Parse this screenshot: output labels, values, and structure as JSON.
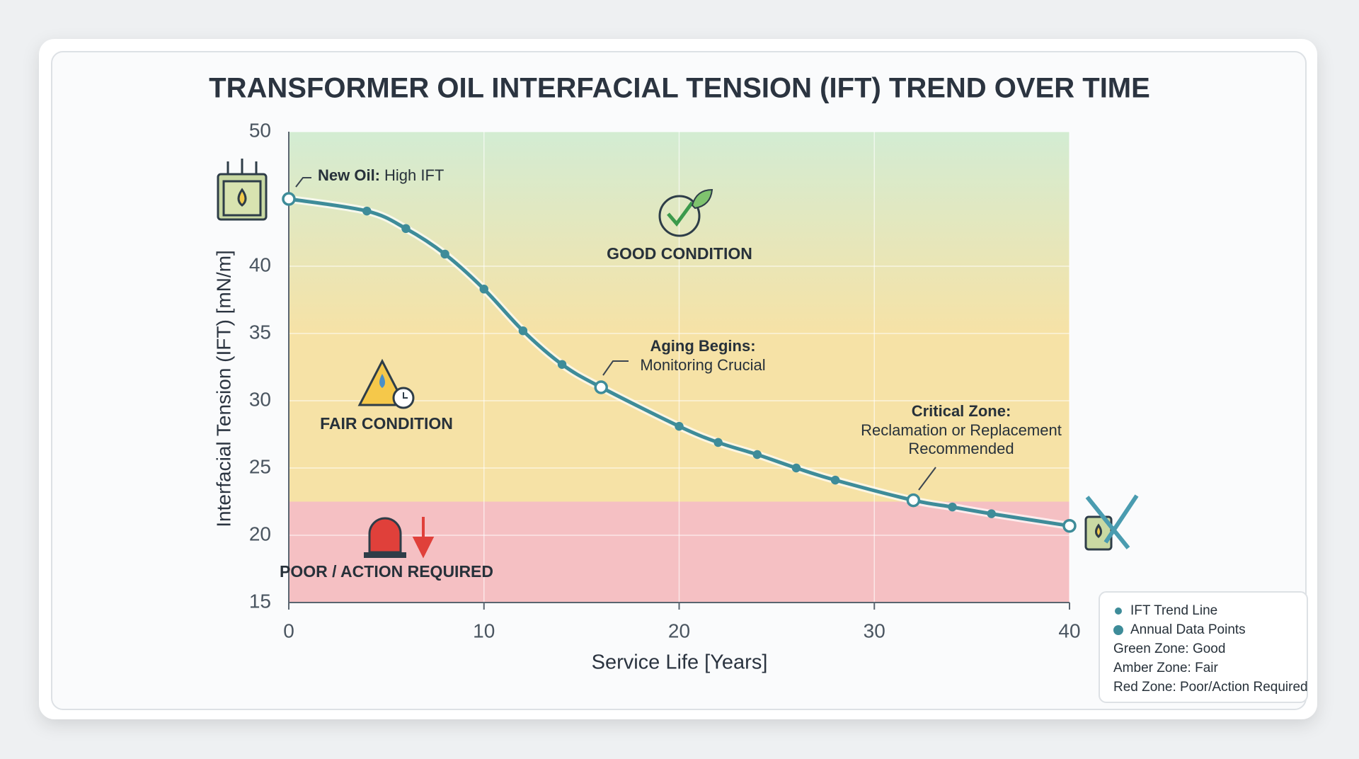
{
  "chart_data": {
    "type": "line",
    "title": "TRANSFORMER OIL INTERFACIAL TENSION (IFT) TREND OVER TIME",
    "x_label": "Service Life [Years]",
    "y_label": "Interfacial Tension (IFT) [mN/m]",
    "xlim": [
      0,
      40
    ],
    "xticks": [
      0,
      10,
      20,
      30,
      40
    ],
    "ylim": [
      15,
      50
    ],
    "yticks": [
      15,
      20,
      25,
      30,
      35,
      40,
      50
    ],
    "grid": true,
    "x": [
      0,
      4,
      6,
      8,
      10,
      12,
      14,
      16,
      20,
      22,
      24,
      26,
      28,
      32,
      34,
      36,
      40
    ],
    "series": [
      {
        "name": "IFT Trend Line",
        "color": "#3e8c99",
        "values": [
          45.0,
          44.1,
          42.8,
          40.9,
          38.3,
          35.2,
          32.7,
          31.0,
          28.1,
          26.9,
          26.0,
          25.0,
          24.1,
          22.6,
          22.1,
          21.6,
          20.7
        ]
      }
    ],
    "zones": [
      {
        "label": "GOOD CONDITION",
        "from": 35,
        "to": 50,
        "color": "#d3ecd3"
      },
      {
        "label": "FAIR CONDITION",
        "from": 22.5,
        "to": 35,
        "color": "#f6e2a6"
      },
      {
        "label": "POOR / ACTION REQUIRED",
        "from": 15,
        "to": 22.5,
        "color": "#f5c0c3"
      }
    ],
    "annotations": [
      {
        "title": "New Oil:",
        "text": "High IFT"
      },
      {
        "title": "Aging Begins:",
        "text": [
          "Monitoring Crucial"
        ]
      },
      {
        "title": "Critical Zone:",
        "text": [
          "Reclamation or Replacement",
          "Recommended"
        ]
      }
    ],
    "legend": [
      "IFT Trend Line",
      "Annual Data Points",
      "Green Zone: Good",
      "Amber Zone: Fair",
      "Red Zone: Poor/Action Required"
    ]
  }
}
